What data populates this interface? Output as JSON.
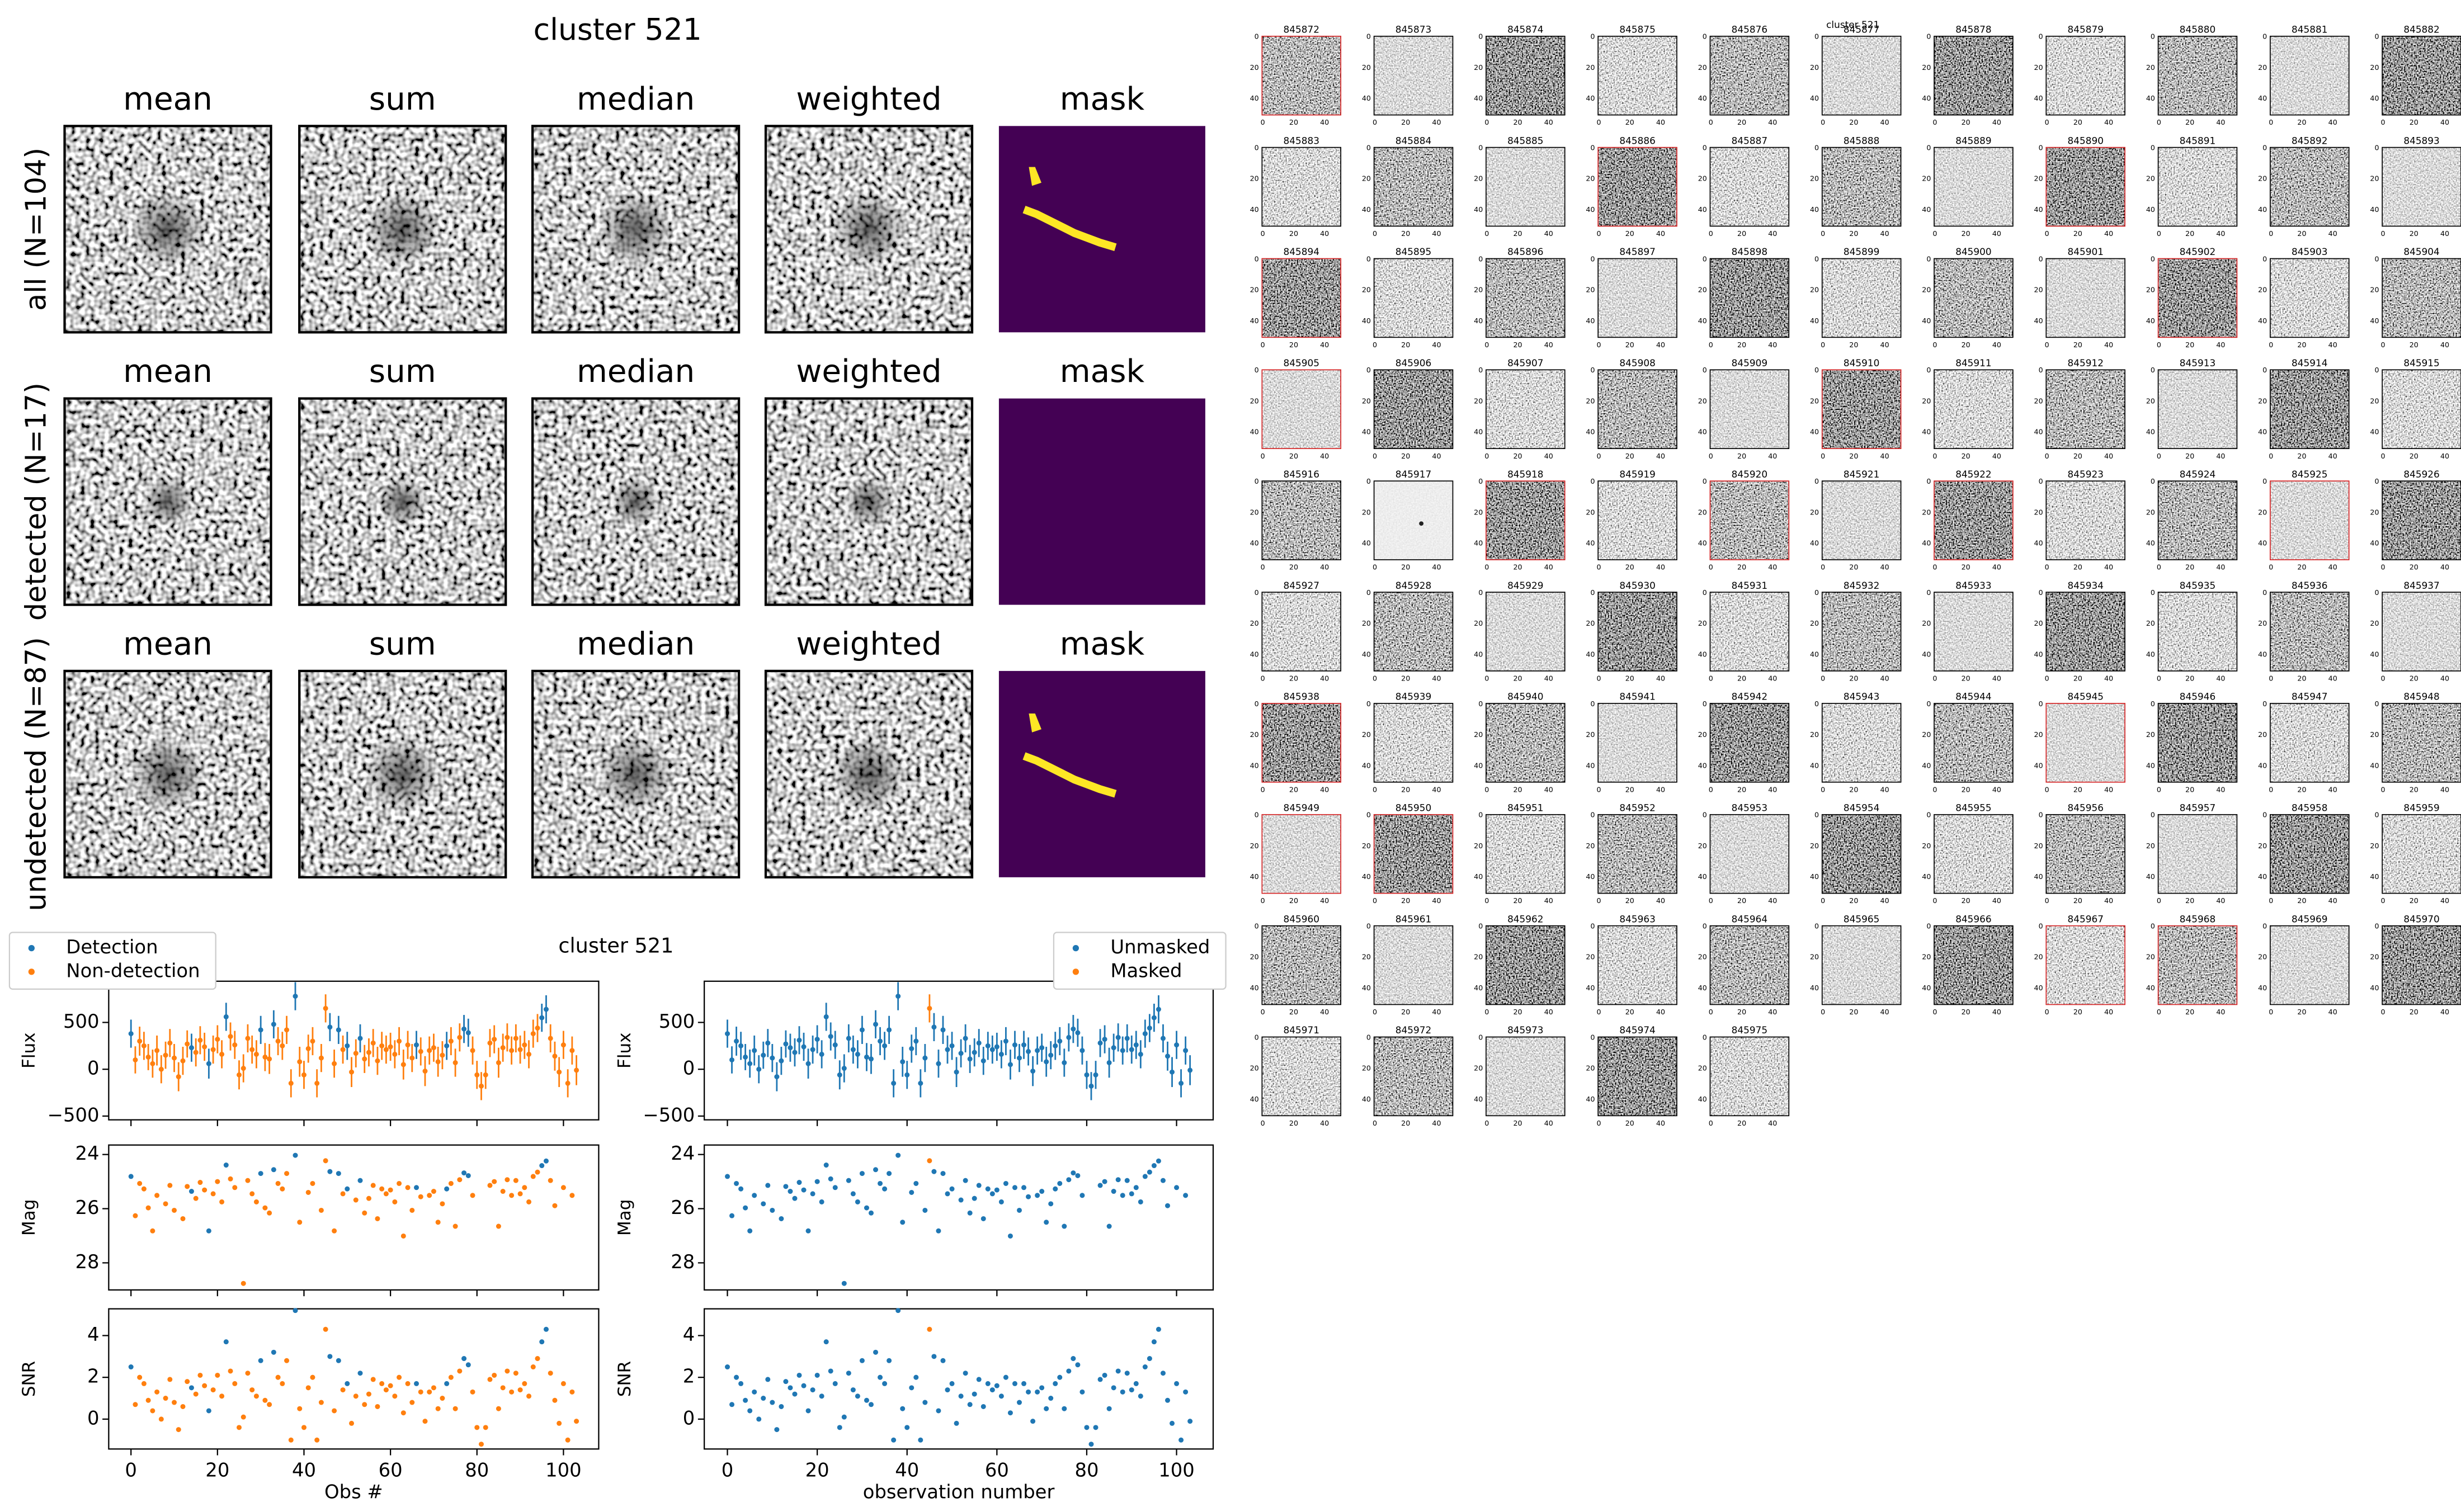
{
  "title": "cluster 521",
  "cutouts": {
    "columns": [
      "mean",
      "sum",
      "median",
      "weighted",
      "mask"
    ],
    "rows": [
      "all (N=104)",
      "detected (N=17)",
      "undetected (N=87)"
    ]
  },
  "thumbnails": {
    "title": "cluster 521",
    "highlight_color": "#d62728",
    "ticks": [
      0,
      20,
      40
    ],
    "ids": [
      845872,
      845873,
      845874,
      845875,
      845876,
      845877,
      845878,
      845879,
      845880,
      845881,
      845882,
      845883,
      845884,
      845885,
      845886,
      845887,
      845888,
      845889,
      845890,
      845891,
      845892,
      845893,
      845894,
      845895,
      845896,
      845897,
      845898,
      845899,
      845900,
      845901,
      845902,
      845903,
      845904,
      845905,
      845906,
      845907,
      845908,
      845909,
      845910,
      845911,
      845912,
      845913,
      845914,
      845915,
      845916,
      845917,
      845918,
      845919,
      845920,
      845921,
      845922,
      845923,
      845924,
      845925,
      845926,
      845927,
      845928,
      845929,
      845930,
      845931,
      845932,
      845933,
      845934,
      845935,
      845936,
      845937,
      845938,
      845939,
      845940,
      845941,
      845942,
      845943,
      845944,
      845945,
      845946,
      845947,
      845948,
      845949,
      845950,
      845951,
      845952,
      845953,
      845954,
      845955,
      845956,
      845957,
      845958,
      845959,
      845960,
      845961,
      845962,
      845963,
      845964,
      845965,
      845966,
      845967,
      845968,
      845969,
      845970,
      845971,
      845972,
      845973,
      845974,
      845975
    ]
  },
  "chart_data": {
    "type": "scatter",
    "title": "cluster 521",
    "x": [
      0,
      1,
      2,
      3,
      4,
      5,
      6,
      7,
      8,
      9,
      10,
      11,
      12,
      13,
      14,
      15,
      16,
      17,
      18,
      19,
      20,
      21,
      22,
      23,
      24,
      25,
      26,
      27,
      28,
      29,
      30,
      31,
      32,
      33,
      34,
      35,
      36,
      37,
      38,
      39,
      40,
      41,
      42,
      43,
      44,
      45,
      46,
      47,
      48,
      49,
      50,
      51,
      52,
      53,
      54,
      55,
      56,
      57,
      58,
      59,
      60,
      61,
      62,
      63,
      64,
      65,
      66,
      67,
      68,
      69,
      70,
      71,
      72,
      73,
      74,
      75,
      76,
      77,
      78,
      79,
      80,
      81,
      82,
      83,
      84,
      85,
      86,
      87,
      88,
      89,
      90,
      91,
      92,
      93,
      94,
      95,
      96,
      97,
      98,
      99,
      100,
      101,
      102,
      103
    ],
    "xlim": [
      -5.15,
      108.15
    ],
    "xticks": [
      0,
      20,
      40,
      60,
      80,
      100
    ],
    "xlabels": [
      "Obs #",
      "observation number"
    ],
    "detected": [
      0,
      14,
      18,
      22,
      30,
      33,
      38,
      46,
      48,
      50,
      53,
      66,
      73,
      77,
      78,
      95,
      96
    ],
    "masked": [
      45
    ],
    "legends": [
      {
        "corner": "upper left",
        "series": [
          {
            "name": "Detection",
            "color": "#1f77b4"
          },
          {
            "name": "Non-detection",
            "color": "#ff7f0e"
          }
        ]
      },
      {
        "corner": "upper right",
        "series": [
          {
            "name": "Unmasked",
            "color": "#1f77b4"
          },
          {
            "name": "Masked",
            "color": "#ff7f0e"
          }
        ]
      }
    ],
    "panels": [
      {
        "ylabel": "Flux",
        "ylim": [
          -540,
          940
        ],
        "yticks": [
          {
            "value": -500,
            "label": "−500"
          },
          0,
          500
        ],
        "values": [
          380,
          100,
          300,
          250,
          130,
          60,
          200,
          0,
          150,
          280,
          120,
          -80,
          90,
          270,
          230,
          180,
          310,
          240,
          60,
          210,
          320,
          160,
          560,
          350,
          260,
          -60,
          10,
          330,
          210,
          160,
          420,
          130,
          110,
          480,
          300,
          250,
          420,
          -150,
          780,
          80,
          -60,
          220,
          300,
          -150,
          120,
          650,
          450,
          60,
          420,
          210,
          250,
          -30,
          170,
          330,
          110,
          180,
          280,
          90,
          250,
          210,
          240,
          160,
          300,
          50,
          260,
          120,
          260,
          190,
          -20,
          200,
          230,
          80,
          150,
          250,
          300,
          70,
          340,
          430,
          390,
          200,
          -60,
          -180,
          -60,
          280,
          320,
          70,
          230,
          340,
          200,
          330,
          210,
          260,
          160,
          380,
          440,
          550,
          640,
          330,
          140,
          -30,
          260,
          -150,
          200,
          -10
        ],
        "errors": [
          150,
          145,
          155,
          150,
          140,
          150,
          160,
          150,
          145,
          150,
          150,
          155,
          150,
          145,
          150,
          150,
          150,
          150,
          160,
          150,
          150,
          150,
          150,
          150,
          150,
          155,
          150,
          150,
          150,
          150,
          150,
          150,
          160,
          150,
          150,
          150,
          150,
          150,
          150,
          160,
          150,
          150,
          150,
          150,
          150,
          150,
          150,
          150,
          150,
          150,
          150,
          160,
          150,
          150,
          150,
          150,
          150,
          150,
          150,
          150,
          150,
          150,
          150,
          160,
          150,
          150,
          150,
          150,
          160,
          150,
          150,
          160,
          150,
          150,
          150,
          150,
          150,
          150,
          150,
          150,
          150,
          150,
          150,
          150,
          150,
          160,
          150,
          150,
          150,
          150,
          150,
          150,
          150,
          150,
          150,
          150,
          150,
          150,
          155,
          160,
          150,
          150,
          150,
          160
        ]
      },
      {
        "ylabel": "Mag",
        "ylim": [
          29.0,
          23.65
        ],
        "yticks": [
          24,
          26,
          28
        ],
        "values": [
          24.81,
          26.26,
          25.07,
          25.27,
          25.97,
          26.82,
          25.51,
          null,
          25.82,
          25.14,
          26.06,
          null,
          26.37,
          25.18,
          25.36,
          25.62,
          25.03,
          25.31,
          26.82,
          25.45,
          25.0,
          25.75,
          24.39,
          24.9,
          25.22,
          null,
          28.76,
          24.96,
          25.45,
          25.75,
          24.7,
          25.97,
          26.16,
          24.56,
          25.07,
          25.27,
          24.7,
          null,
          24.03,
          26.5,
          null,
          25.4,
          25.07,
          null,
          26.06,
          24.23,
          24.63,
          26.82,
          24.7,
          25.45,
          25.27,
          null,
          25.68,
          24.96,
          26.16,
          25.62,
          25.14,
          26.37,
          25.27,
          25.45,
          25.31,
          25.75,
          25.07,
          27.01,
          25.22,
          26.06,
          25.22,
          25.56,
          null,
          25.51,
          25.36,
          26.5,
          25.82,
          25.27,
          25.07,
          26.65,
          24.93,
          24.68,
          24.78,
          25.51,
          null,
          null,
          null,
          25.14,
          25.0,
          26.65,
          25.36,
          24.93,
          25.51,
          24.96,
          25.45,
          25.22,
          25.75,
          24.81,
          24.65,
          24.41,
          24.24,
          24.96,
          25.89,
          null,
          25.22,
          null,
          25.51,
          null
        ]
      },
      {
        "ylabel": "SNR",
        "ylim": [
          -1.43,
          5.28
        ],
        "yticks": [
          0,
          2,
          4
        ],
        "values": [
          2.5,
          0.7,
          2.0,
          1.7,
          0.9,
          0.4,
          1.3,
          0.0,
          1.0,
          1.9,
          0.8,
          -0.5,
          0.6,
          1.8,
          1.5,
          1.2,
          2.1,
          1.6,
          0.4,
          1.4,
          2.1,
          1.1,
          3.7,
          2.3,
          1.7,
          -0.4,
          0.1,
          2.2,
          1.4,
          1.1,
          2.8,
          0.9,
          0.7,
          3.2,
          2.0,
          1.7,
          2.8,
          -1.0,
          5.2,
          0.5,
          -0.4,
          1.5,
          2.0,
          -1.0,
          0.8,
          4.3,
          3.0,
          0.4,
          2.8,
          1.4,
          1.7,
          -0.2,
          1.1,
          2.2,
          0.7,
          1.2,
          1.9,
          0.6,
          1.7,
          1.4,
          1.6,
          1.1,
          2.0,
          0.3,
          1.7,
          0.8,
          1.7,
          1.3,
          -0.1,
          1.3,
          1.5,
          0.5,
          1.0,
          1.7,
          2.0,
          0.5,
          2.3,
          2.9,
          2.6,
          1.3,
          -0.4,
          -1.2,
          -0.4,
          1.9,
          2.1,
          0.5,
          1.5,
          2.3,
          1.3,
          2.2,
          1.4,
          1.7,
          1.1,
          2.5,
          2.9,
          3.7,
          4.3,
          2.2,
          0.9,
          -0.2,
          1.7,
          -1.0,
          1.3,
          -0.1
        ]
      }
    ]
  }
}
